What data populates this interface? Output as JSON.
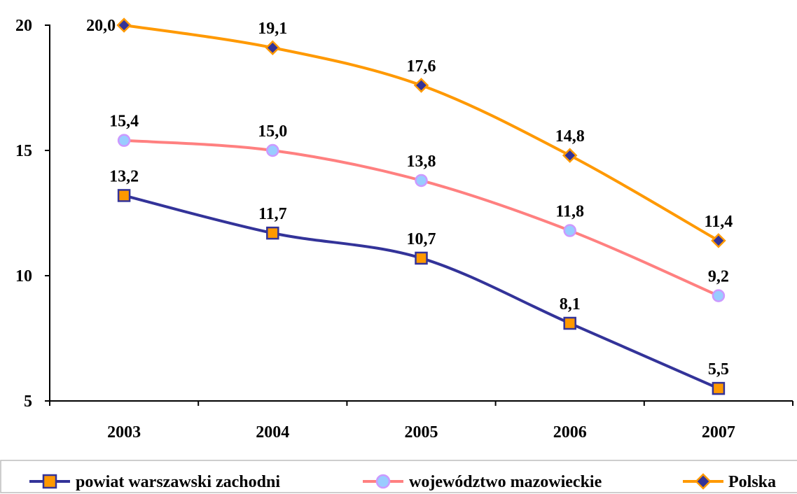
{
  "chart_data": {
    "type": "line",
    "categories": [
      "2003",
      "2004",
      "2005",
      "2006",
      "2007"
    ],
    "ylim": [
      5,
      20
    ],
    "yticks": [
      5,
      10,
      15,
      20
    ],
    "grid": false,
    "legend_position": "bottom",
    "series": [
      {
        "name": "powiat warszawski zachodni",
        "values": [
          13.2,
          11.7,
          10.7,
          8.1,
          5.5
        ],
        "labels": [
          "13,2",
          "11,7",
          "10,7",
          "8,1",
          "5,5"
        ],
        "line_color": "#333399",
        "marker": "square",
        "marker_fill": "#FF9900",
        "marker_stroke": "#333399"
      },
      {
        "name": "województwo mazowieckie",
        "values": [
          15.4,
          15.0,
          13.8,
          11.8,
          9.2
        ],
        "labels": [
          "15,4",
          "15,0",
          "13,8",
          "11,8",
          "9,2"
        ],
        "line_color": "#FF8080",
        "marker": "circle",
        "marker_fill": "#99CCFF",
        "marker_stroke": "#CC99FF"
      },
      {
        "name": "Polska",
        "values": [
          20.0,
          19.1,
          17.6,
          14.8,
          11.4
        ],
        "labels": [
          "20,0",
          "19,1",
          "17,6",
          "14,8",
          "11,4"
        ],
        "line_color": "#FF9900",
        "marker": "diamond",
        "marker_fill": "#333399",
        "marker_stroke": "#FF9900"
      }
    ]
  }
}
